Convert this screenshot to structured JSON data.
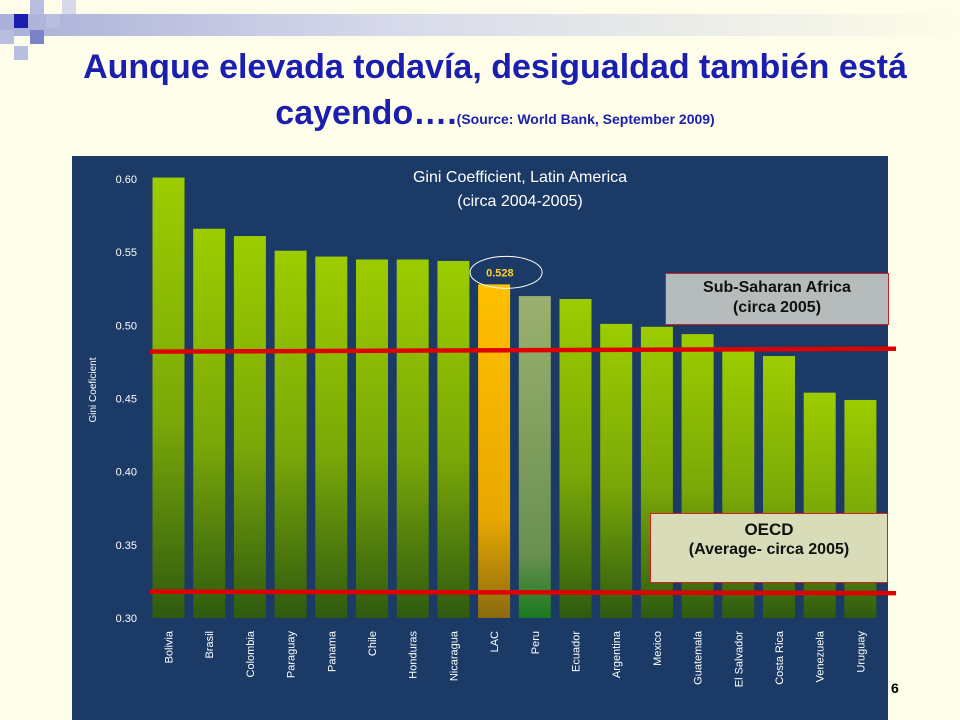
{
  "slide": {
    "title": "Aunque elevada todavía, desigualdad también está cayendo….",
    "source": "(Source: World Bank, September 2009)",
    "page_number": "6"
  },
  "callouts": {
    "ssa_line1": "Sub-Saharan Africa",
    "ssa_line2": "(circa 2005)",
    "oecd_line1": "OECD",
    "oecd_line2": "(Average- circa 2005)"
  },
  "colors": {
    "title": "#1a1fb0",
    "panel": "#1b3a66",
    "bar_top": "#9ccc00",
    "bar_bottom": "#2f5a10",
    "lac_bar": "#ffc000",
    "peru_bar": "#9ab070",
    "reference_line": "#e00000"
  },
  "chart_data": {
    "type": "bar",
    "title": "Gini Coefficient, Latin America",
    "subtitle": "(circa 2004-2005)",
    "ylabel": "Gini Coeficient",
    "xlabel": "",
    "ylim": [
      0.3,
      0.6
    ],
    "yticks": [
      "0.30",
      "0.35",
      "0.40",
      "0.45",
      "0.50",
      "0.55",
      "0.60"
    ],
    "grid": false,
    "categories": [
      "Bolivia",
      "Brasil",
      "Colombia",
      "Paraguay",
      "Panama",
      "Chile",
      "Honduras",
      "Nicaragua",
      "LAC",
      "Peru",
      "Ecuador",
      "Argentina",
      "Mexico",
      "Guatemala",
      "El Salvador",
      "Costa Rica",
      "Venezuela",
      "Uruguay"
    ],
    "values": [
      0.601,
      0.566,
      0.561,
      0.551,
      0.547,
      0.545,
      0.545,
      0.544,
      0.528,
      0.52,
      0.518,
      0.501,
      0.499,
      0.494,
      0.483,
      0.479,
      0.454,
      0.449
    ],
    "highlight": {
      "category": "LAC",
      "label": "0.528"
    },
    "reference_lines": [
      {
        "value": 0.482,
        "value_end": 0.484
      },
      {
        "value": 0.318,
        "value_end": 0.317
      }
    ]
  }
}
